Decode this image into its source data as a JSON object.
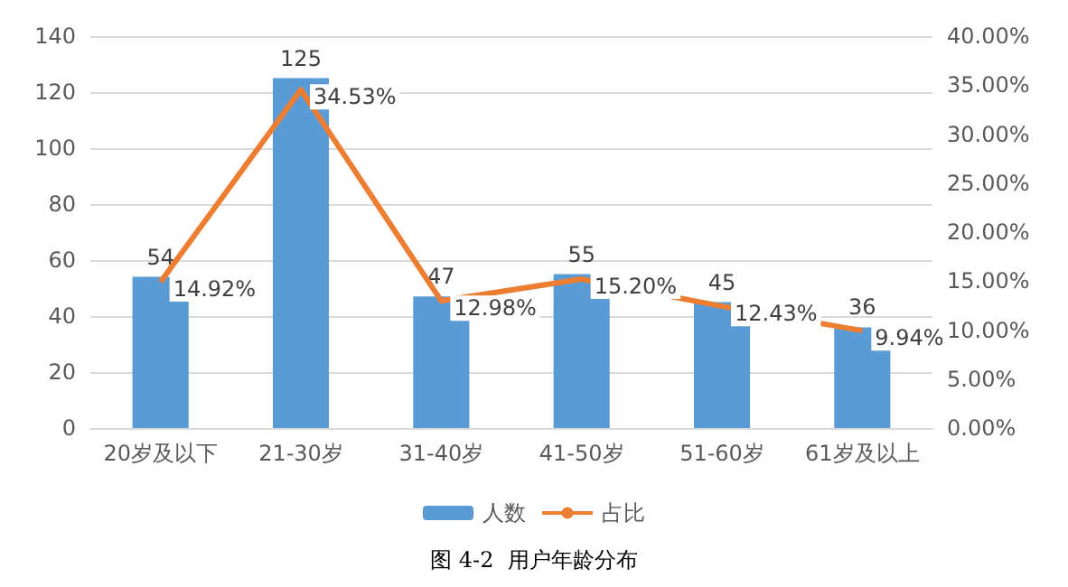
{
  "chart_data": {
    "type": "bar",
    "title": "图 4-2  用户年龄分布",
    "categories": [
      "20岁及以下",
      "21-30岁",
      "31-40岁",
      "41-50岁",
      "51-60岁",
      "61岁及以上"
    ],
    "series": [
      {
        "name": "人数",
        "color": "#5b9bd5",
        "values": [
          54,
          125,
          47,
          55,
          45,
          36
        ],
        "data_labels": true
      },
      {
        "name": "占比",
        "type": "line",
        "axis": "y2",
        "color": "#ed7d31",
        "values": [
          14.92,
          34.53,
          12.98,
          15.2,
          12.43,
          9.94
        ],
        "value_labels": [
          "14.92%",
          "34.53%",
          "12.98%",
          "15.20%",
          "12.43%",
          "9.94%"
        ],
        "marker": "none"
      }
    ],
    "ylim": [
      0,
      140
    ],
    "yticks": [
      0,
      20,
      40,
      60,
      80,
      100,
      120,
      140
    ],
    "y2lim": [
      0,
      40
    ],
    "y2ticks": [
      {
        "value": 0,
        "label": "0.00%"
      },
      {
        "value": 5,
        "label": "5.00%"
      },
      {
        "value": 10,
        "label": "10.00%"
      },
      {
        "value": 15,
        "label": "15.00%"
      },
      {
        "value": 20,
        "label": "20.00%"
      },
      {
        "value": 25,
        "label": "25.00%"
      },
      {
        "value": 30,
        "label": "30.00%"
      },
      {
        "value": 35,
        "label": "35.00%"
      },
      {
        "value": 40,
        "label": "40.00%"
      }
    ],
    "grid": "y",
    "legend": "bottom"
  }
}
